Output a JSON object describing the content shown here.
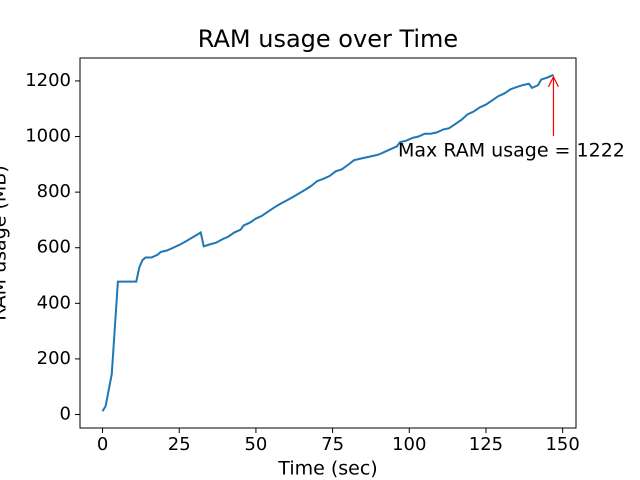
{
  "chart_data": {
    "type": "line",
    "title": "RAM usage over Time",
    "x_label": "Time (sec)",
    "y_label": "RAM usage (MB)",
    "x": [
      0,
      1,
      3,
      5,
      7,
      9,
      11,
      12,
      13,
      14,
      16,
      18,
      19,
      21,
      23,
      25,
      27,
      29,
      31,
      32,
      33,
      35,
      37,
      39,
      41,
      43,
      45,
      46,
      48,
      50,
      52,
      54,
      56,
      58,
      60,
      62,
      64,
      66,
      68,
      70,
      72,
      74,
      76,
      78,
      80,
      82,
      84,
      86,
      88,
      90,
      92,
      94,
      96,
      97,
      99,
      101,
      103,
      105,
      107,
      109,
      111,
      113,
      115,
      117,
      119,
      121,
      123,
      125,
      127,
      129,
      131,
      133,
      135,
      137,
      139,
      140,
      142,
      143,
      145,
      147
    ],
    "series": [
      {
        "color": "#1f77b4",
        "values": [
          12,
          30,
          145,
          478,
          478,
          478,
          478,
          530,
          555,
          565,
          565,
          575,
          585,
          590,
          600,
          610,
          622,
          635,
          648,
          655,
          605,
          612,
          618,
          630,
          640,
          655,
          665,
          680,
          690,
          705,
          715,
          730,
          745,
          758,
          770,
          782,
          795,
          808,
          822,
          840,
          848,
          858,
          875,
          882,
          898,
          915,
          920,
          925,
          930,
          935,
          945,
          955,
          965,
          980,
          985,
          995,
          1000,
          1010,
          1010,
          1015,
          1025,
          1030,
          1045,
          1060,
          1080,
          1090,
          1105,
          1115,
          1130,
          1145,
          1155,
          1170,
          1178,
          1185,
          1190,
          1175,
          1185,
          1205,
          1212,
          1222
        ]
      }
    ],
    "xlim": [
      -7.35,
      154.35
    ],
    "ylim": [
      -48.5,
      1282.5
    ],
    "xticks": [
      0,
      25,
      50,
      75,
      100,
      125,
      150
    ],
    "yticks": [
      0,
      200,
      400,
      600,
      800,
      1000,
      1200
    ],
    "annotation": {
      "text": "Max RAM usage = 1222",
      "xy": [
        147,
        1222
      ],
      "color": "red"
    }
  }
}
